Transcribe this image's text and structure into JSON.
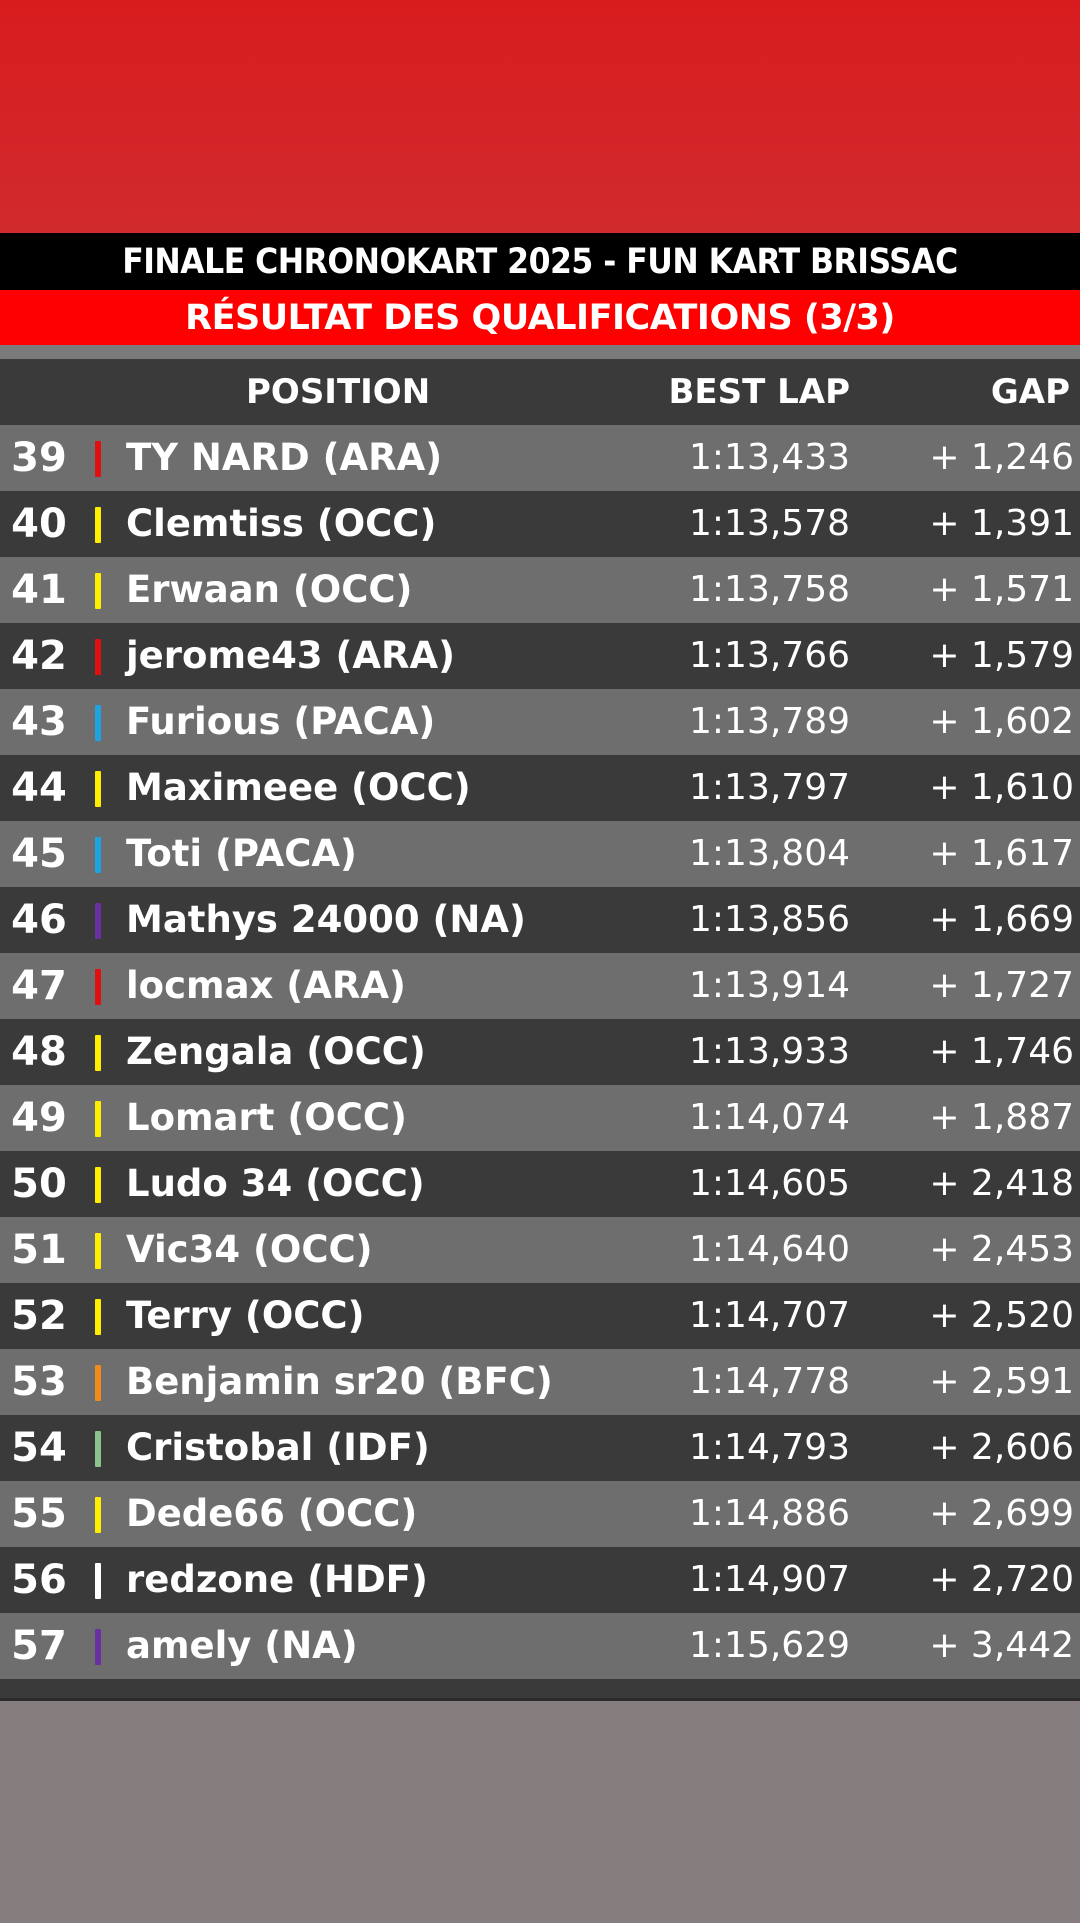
{
  "header": {
    "title": "FINALE CHRONOKART 2025 - FUN KART BRISSAC",
    "subtitle": "RÉSULTAT DES QUALIFICATIONS (3/3)"
  },
  "columns": {
    "position": "POSITION",
    "best_lap": "BEST LAP",
    "gap": "GAP"
  },
  "colors": {
    "top_band": "#d81c1e",
    "title_bg": "#000000",
    "subtitle_bg": "#ff0000",
    "row_light": "#6e6e6e",
    "row_dark": "#3a3a3a"
  },
  "rows": [
    {
      "pos": "39",
      "name": "TY NARD (ARA)",
      "lap": "1:13,433",
      "gap": "+ 1,246",
      "color": "#e01010"
    },
    {
      "pos": "40",
      "name": "Clemtiss (OCC)",
      "lap": "1:13,578",
      "gap": "+ 1,391",
      "color": "#ffee00"
    },
    {
      "pos": "41",
      "name": "Erwaan (OCC)",
      "lap": "1:13,758",
      "gap": "+ 1,571",
      "color": "#ffee00"
    },
    {
      "pos": "42",
      "name": "jerome43 (ARA)",
      "lap": "1:13,766",
      "gap": "+ 1,579",
      "color": "#e01010"
    },
    {
      "pos": "43",
      "name": "Furious (PACA)",
      "lap": "1:13,789",
      "gap": "+ 1,602",
      "color": "#1fa3e0"
    },
    {
      "pos": "44",
      "name": "Maximeee (OCC)",
      "lap": "1:13,797",
      "gap": "+ 1,610",
      "color": "#ffee00"
    },
    {
      "pos": "45",
      "name": "Toti (PACA)",
      "lap": "1:13,804",
      "gap": "+ 1,617",
      "color": "#1fa3e0"
    },
    {
      "pos": "46",
      "name": "Mathys 24000 (NA)",
      "lap": "1:13,856",
      "gap": "+ 1,669",
      "color": "#6a2fa0"
    },
    {
      "pos": "47",
      "name": "locmax (ARA)",
      "lap": "1:13,914",
      "gap": "+ 1,727",
      "color": "#e01010"
    },
    {
      "pos": "48",
      "name": "Zengala (OCC)",
      "lap": "1:13,933",
      "gap": "+ 1,746",
      "color": "#ffee00"
    },
    {
      "pos": "49",
      "name": "Lomart (OCC)",
      "lap": "1:14,074",
      "gap": "+ 1,887",
      "color": "#ffee00"
    },
    {
      "pos": "50",
      "name": "Ludo 34 (OCC)",
      "lap": "1:14,605",
      "gap": "+ 2,418",
      "color": "#ffee00"
    },
    {
      "pos": "51",
      "name": "Vic34 (OCC)",
      "lap": "1:14,640",
      "gap": "+ 2,453",
      "color": "#ffee00"
    },
    {
      "pos": "52",
      "name": "Terry (OCC)",
      "lap": "1:14,707",
      "gap": "+ 2,520",
      "color": "#ffee00"
    },
    {
      "pos": "53",
      "name": "Benjamin sr20 (BFC)",
      "lap": "1:14,778",
      "gap": "+ 2,591",
      "color": "#f08a1a"
    },
    {
      "pos": "54",
      "name": "Cristobal (IDF)",
      "lap": "1:14,793",
      "gap": "+ 2,606",
      "color": "#8cc28c"
    },
    {
      "pos": "55",
      "name": "Dede66 (OCC)",
      "lap": "1:14,886",
      "gap": "+ 2,699",
      "color": "#ffee00"
    },
    {
      "pos": "56",
      "name": "redzone (HDF)",
      "lap": "1:14,907",
      "gap": "+ 2,720",
      "color": "#ffffff"
    },
    {
      "pos": "57",
      "name": "amely (NA)",
      "lap": "1:15,629",
      "gap": "+ 3,442",
      "color": "#6a2fa0"
    }
  ]
}
